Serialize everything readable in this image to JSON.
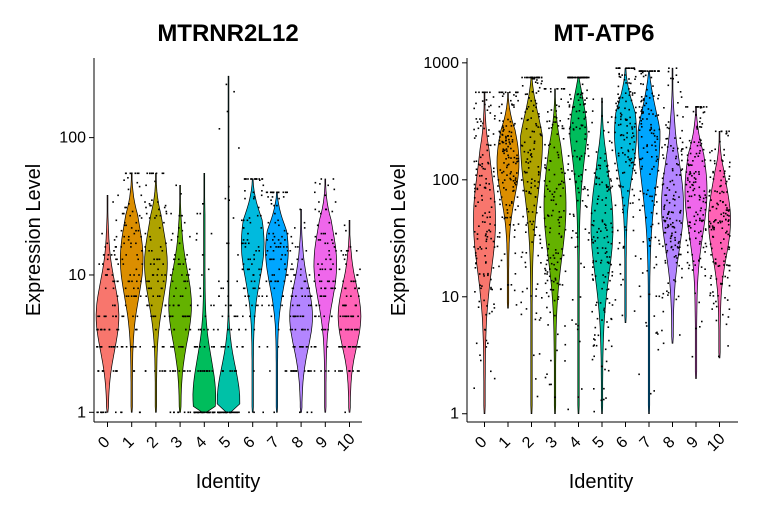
{
  "chart_data": [
    {
      "type": "violin",
      "title": "MTRNR2L12",
      "xlabel": "Identity",
      "ylabel": "Expression Level",
      "yscale": "log",
      "ylim": [
        0.85,
        380
      ],
      "yticks": [
        1,
        10,
        100
      ],
      "ytick_labels": [
        "1",
        "10",
        "100"
      ],
      "categories": [
        "0",
        "1",
        "2",
        "3",
        "4",
        "5",
        "6",
        "7",
        "8",
        "9",
        "10"
      ],
      "series": [
        {
          "category": "0",
          "min": 1,
          "max": 38,
          "median": 5,
          "mode": 5
        },
        {
          "category": "1",
          "min": 1,
          "max": 55,
          "median": 12,
          "mode": 13
        },
        {
          "category": "2",
          "min": 1,
          "max": 55,
          "median": 12,
          "mode": 12
        },
        {
          "category": "3",
          "min": 1,
          "max": 45,
          "median": 5,
          "mode": 6
        },
        {
          "category": "4",
          "min": 1,
          "max": 55,
          "median": 3,
          "mode": 1.3
        },
        {
          "category": "5",
          "min": 1,
          "max": 280,
          "median": 2,
          "mode": 1.2
        },
        {
          "category": "6",
          "min": 1,
          "max": 50,
          "median": 16,
          "mode": 17
        },
        {
          "category": "7",
          "min": 1,
          "max": 40,
          "median": 14,
          "mode": 15
        },
        {
          "category": "8",
          "min": 1,
          "max": 30,
          "median": 5,
          "mode": 5
        },
        {
          "category": "9",
          "min": 1,
          "max": 50,
          "median": 11,
          "mode": 12
        },
        {
          "category": "10",
          "min": 1,
          "max": 25,
          "median": 5,
          "mode": 5
        }
      ]
    },
    {
      "type": "violin",
      "title": "MT-ATP6",
      "xlabel": "Identity",
      "ylabel": "Expression Level",
      "yscale": "log",
      "ylim": [
        0.85,
        1100
      ],
      "yticks": [
        1,
        10,
        100,
        1000
      ],
      "ytick_labels": [
        "1",
        "10",
        "100",
        "1000"
      ],
      "categories": [
        "0",
        "1",
        "2",
        "3",
        "4",
        "5",
        "6",
        "7",
        "8",
        "9",
        "10"
      ],
      "series": [
        {
          "category": "0",
          "min": 1,
          "max": 560,
          "median": 45,
          "mode": 45
        },
        {
          "category": "1",
          "min": 8,
          "max": 560,
          "median": 130,
          "mode": 140
        },
        {
          "category": "2",
          "min": 1,
          "max": 750,
          "median": 210,
          "mode": 220
        },
        {
          "category": "3",
          "min": 1,
          "max": 600,
          "median": 40,
          "mode": 60
        },
        {
          "category": "4",
          "min": 1,
          "max": 750,
          "median": 35,
          "mode": 500
        },
        {
          "category": "5",
          "min": 1,
          "max": 500,
          "median": 20,
          "mode": 40
        },
        {
          "category": "6",
          "min": 6,
          "max": 900,
          "median": 200,
          "mode": 250
        },
        {
          "category": "7",
          "min": 1,
          "max": 850,
          "median": 230,
          "mode": 250
        },
        {
          "category": "8",
          "min": 4,
          "max": 900,
          "median": 60,
          "mode": 60
        },
        {
          "category": "9",
          "min": 2,
          "max": 420,
          "median": 70,
          "mode": 80
        },
        {
          "category": "10",
          "min": 3,
          "max": 260,
          "median": 45,
          "mode": 45
        }
      ]
    }
  ],
  "colors": {
    "clusters": [
      "#F8766D",
      "#DB8E00",
      "#AEA200",
      "#64B200",
      "#00BD5C",
      "#00C1A7",
      "#00BADE",
      "#00A6FF",
      "#B385FF",
      "#EF67EB",
      "#FF63B6"
    ],
    "points": "#000000",
    "axis": "#000000"
  }
}
